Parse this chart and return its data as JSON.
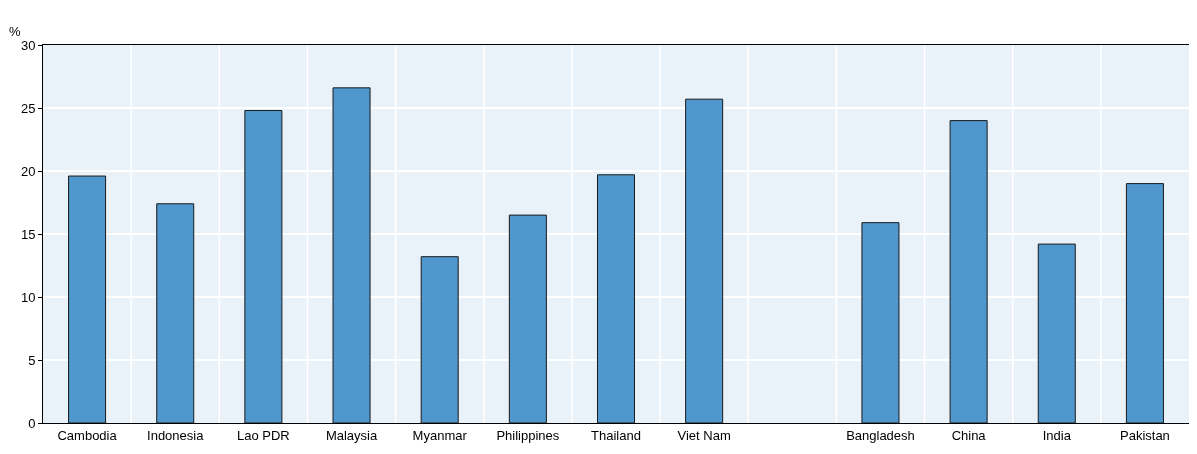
{
  "chart_data": {
    "type": "bar",
    "ylabel": "%",
    "categories": [
      "Cambodia",
      "Indonesia",
      "Lao PDR",
      "Malaysia",
      "Myanmar",
      "Philippines",
      "Thailand",
      "Viet Nam",
      null,
      "Bangladesh",
      "China",
      "India",
      "Pakistan"
    ],
    "values": [
      19.6,
      17.4,
      24.8,
      26.6,
      13.2,
      16.5,
      19.7,
      25.7,
      null,
      15.9,
      24.0,
      14.2,
      19.0
    ],
    "color": "#4f97cc",
    "ylim": [
      0,
      30
    ],
    "yticks": [
      0,
      5,
      10,
      15,
      20,
      25,
      30
    ],
    "grid": true
  }
}
